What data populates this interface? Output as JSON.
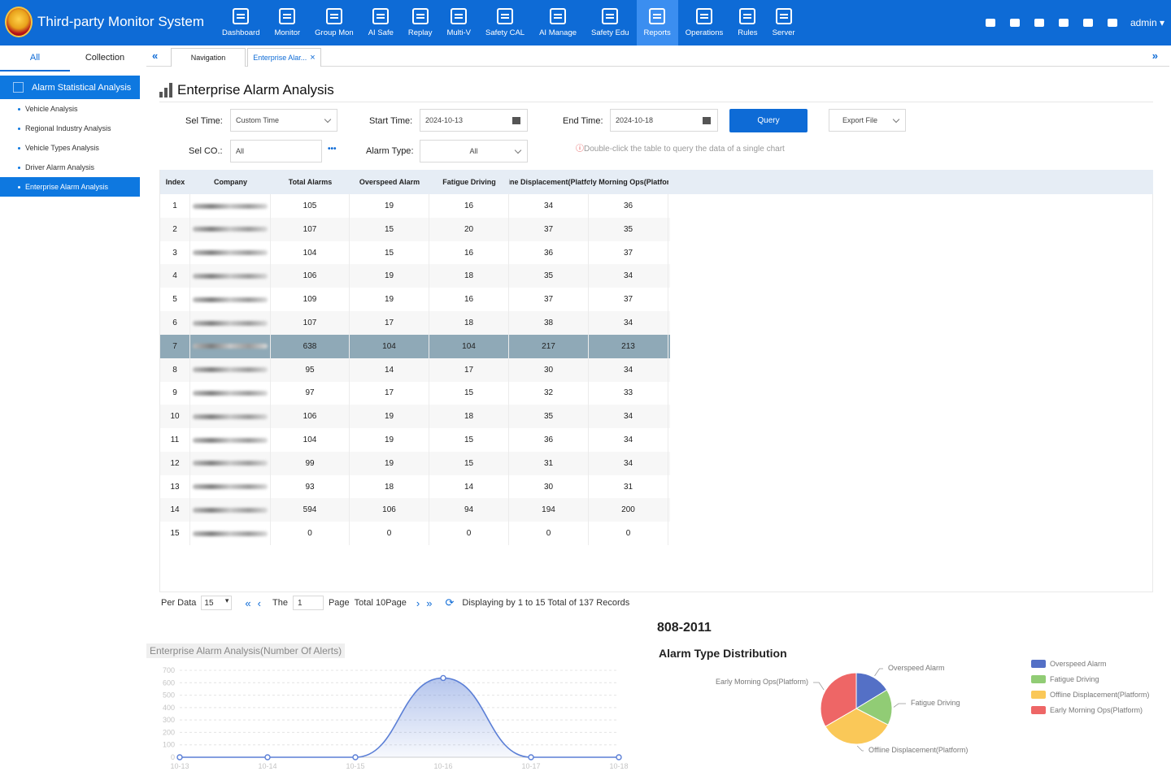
{
  "app": {
    "title": "Third-party Monitor System",
    "user": "admin"
  },
  "nav": [
    {
      "label": "Dashboard",
      "icon": "dashboard-icon"
    },
    {
      "label": "Monitor",
      "icon": "monitor-icon"
    },
    {
      "label": "Group Mon",
      "icon": "group-monitor-icon"
    },
    {
      "label": "AI Safe",
      "icon": "ai-safe-icon"
    },
    {
      "label": "Replay",
      "icon": "replay-icon"
    },
    {
      "label": "Multi-V",
      "icon": "multi-video-icon"
    },
    {
      "label": "Safety CAL",
      "icon": "safety-calendar-icon"
    },
    {
      "label": "AI Manage",
      "icon": "ai-manage-icon"
    },
    {
      "label": "Safety Edu",
      "icon": "safety-education-icon"
    },
    {
      "label": "Reports",
      "icon": "reports-icon",
      "active": true
    },
    {
      "label": "Operations",
      "icon": "operations-icon"
    },
    {
      "label": "Rules",
      "icon": "rules-icon"
    },
    {
      "label": "Server",
      "icon": "server-icon"
    }
  ],
  "sidebar": {
    "tabs": [
      "All",
      "Collection"
    ],
    "group": "Alarm Statistical Analysis",
    "items": [
      "Vehicle Analysis",
      "Regional Industry Analysis",
      "Vehicle Types Analysis",
      "Driver Alarm Analysis",
      "Enterprise Alarm Analysis"
    ]
  },
  "tabs": {
    "navigation": "Navigation",
    "current": "Enterprise Alar..."
  },
  "page": {
    "title": "Enterprise Alarm Analysis"
  },
  "filters": {
    "sel_time_label": "Sel Time",
    "sel_time_value": "Custom Time",
    "start_label": "Start Time",
    "start_value": "2024-10-13",
    "end_label": "End Time",
    "end_value": "2024-10-18",
    "query": "Query",
    "export": "Export File",
    "sel_co_label": "Sel CO.",
    "sel_co_value": "All",
    "more": "•••",
    "alarm_type_label": "Alarm Type",
    "alarm_type_value": "All",
    "hint": "Double-click the table to query the data of a single chart"
  },
  "table": {
    "columns": [
      "Index",
      "Company",
      "Total Alarms",
      "Overspeed Alarm",
      "Fatigue Driving",
      "Offline Displacement(Platform)",
      "Early Morning Ops(Platform)"
    ],
    "rows": [
      [
        1,
        "",
        105,
        19,
        16,
        34,
        36
      ],
      [
        2,
        "",
        107,
        15,
        20,
        37,
        35
      ],
      [
        3,
        "",
        104,
        15,
        16,
        36,
        37
      ],
      [
        4,
        "",
        106,
        19,
        18,
        35,
        34
      ],
      [
        5,
        "",
        109,
        19,
        16,
        37,
        37
      ],
      [
        6,
        "",
        107,
        17,
        18,
        38,
        34
      ],
      [
        7,
        "",
        638,
        104,
        104,
        217,
        213
      ],
      [
        8,
        "",
        95,
        14,
        17,
        30,
        34
      ],
      [
        9,
        "",
        97,
        17,
        15,
        32,
        33
      ],
      [
        10,
        "",
        106,
        19,
        18,
        35,
        34
      ],
      [
        11,
        "",
        104,
        19,
        15,
        36,
        34
      ],
      [
        12,
        "",
        99,
        19,
        15,
        31,
        34
      ],
      [
        13,
        "",
        93,
        18,
        14,
        30,
        31
      ],
      [
        14,
        "",
        594,
        106,
        94,
        194,
        200
      ],
      [
        15,
        "",
        0,
        0,
        0,
        0,
        0
      ]
    ],
    "selected_row": 7
  },
  "pager": {
    "per_label": "Per Data",
    "per_value": "15",
    "the": "The",
    "page_value": "1",
    "page_label": "Page",
    "total": "Total 10Page",
    "display": "Displaying by 1 to 15 Total of 137 Records"
  },
  "chart_data": [
    {
      "type": "area",
      "title": "Enterprise Alarm Analysis(Number Of Alerts)",
      "categories": [
        "10-13",
        "10-14",
        "10-15",
        "10-16",
        "10-17",
        "10-18"
      ],
      "values": [
        0,
        0,
        0,
        638,
        0,
        0
      ],
      "ylim": [
        0,
        700
      ],
      "yticks": [
        0,
        100,
        200,
        300,
        400,
        500,
        600,
        700
      ],
      "grid": true,
      "color": "#5b7fd6"
    },
    {
      "type": "pie",
      "heading": "808-2011",
      "title": "Alarm Type Distribution",
      "legend": "right",
      "slices": [
        {
          "name": "Overspeed Alarm",
          "value": 104,
          "color": "#5470c6"
        },
        {
          "name": "Fatigue Driving",
          "value": 104,
          "color": "#91cc75"
        },
        {
          "name": "Offline Displacement(Platform)",
          "value": 217,
          "color": "#fac858"
        },
        {
          "name": "Early Morning Ops(Platform)",
          "value": 213,
          "color": "#ee6666"
        }
      ]
    }
  ]
}
